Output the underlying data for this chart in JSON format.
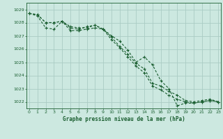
{
  "xlabel": "Graphe pression niveau de la mer (hPa)",
  "bg_color": "#cce8e0",
  "grid_color": "#aaccc4",
  "line_color": "#1a5e30",
  "ylim": [
    1021.5,
    1029.5
  ],
  "xlim": [
    -0.3,
    23.3
  ],
  "yticks": [
    1022,
    1023,
    1024,
    1025,
    1026,
    1027,
    1028,
    1029
  ],
  "xticks": [
    0,
    1,
    2,
    3,
    4,
    5,
    6,
    7,
    8,
    9,
    10,
    11,
    12,
    13,
    14,
    15,
    16,
    17,
    18,
    19,
    20,
    21,
    22,
    23
  ],
  "series": [
    [
      1028.7,
      1028.6,
      1028.0,
      1028.0,
      1028.1,
      1027.7,
      1027.6,
      1027.6,
      1027.8,
      1027.5,
      1027.0,
      1026.6,
      1025.9,
      1025.0,
      1025.4,
      1024.8,
      1023.6,
      1023.0,
      1021.7,
      1021.9,
      1021.9,
      1022.0,
      1022.1,
      1022.0
    ],
    [
      1028.7,
      1028.6,
      1028.0,
      1028.0,
      1028.1,
      1027.4,
      1027.4,
      1027.5,
      1027.6,
      1027.5,
      1026.9,
      1026.2,
      1025.6,
      1024.9,
      1024.5,
      1023.4,
      1023.2,
      1022.8,
      1022.5,
      1022.1,
      1022.0,
      1022.1,
      1022.2,
      1022.0
    ],
    [
      1028.7,
      1028.5,
      1027.6,
      1027.5,
      1028.1,
      1027.6,
      1027.5,
      1027.7,
      1027.8,
      1027.5,
      1026.7,
      1026.1,
      1025.4,
      1024.7,
      1024.2,
      1023.2,
      1022.9,
      1022.5,
      1022.2,
      1022.0,
      1021.9,
      1022.0,
      1022.1,
      1022.0
    ]
  ]
}
